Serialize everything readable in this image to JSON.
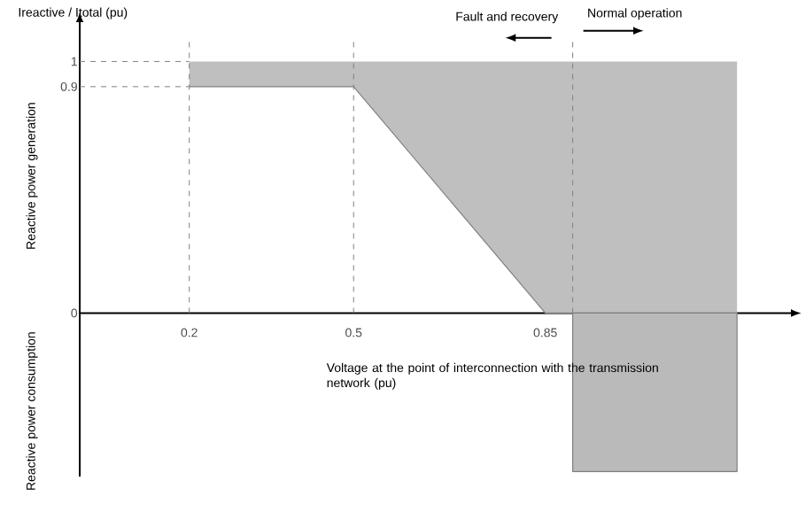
{
  "chart_data": {
    "type": "area",
    "ylabel": "Ireactive / Itotal (pu)",
    "xlabel": "Voltage at the point of interconnection with the transmission network (pu)",
    "xlim": [
      0,
      1.3
    ],
    "ylim": [
      -0.65,
      1.16
    ],
    "xticks": [
      0.2,
      0.5,
      0.85
    ],
    "yticks": [
      0,
      0.9,
      1
    ],
    "series": [
      {
        "type": "line",
        "color": "#808080",
        "x": [
          0.2,
          0.5,
          0.85,
          1.2
        ],
        "values": [
          0.9,
          0.9,
          0,
          0
        ],
        "lower": [
          0.9,
          0.9,
          0,
          0
        ],
        "upper": [
          1,
          1,
          1,
          1
        ]
      },
      {
        "color": "#bababa",
        "x": [
          0.9,
          1.2
        ],
        "values": [
          -0.63,
          -0.63
        ]
      }
    ],
    "ref_lines": [
      {
        "axis": "x",
        "value": 0.2,
        "line_style": "dashed"
      },
      {
        "axis": "x",
        "value": 0.5,
        "line_style": "dashed"
      },
      {
        "axis": "x",
        "value": 0.9,
        "line_style": "dashed"
      },
      {
        "axis": "y",
        "value": 1,
        "line_style": "dashed"
      },
      {
        "axis": "y",
        "value": 0.9,
        "line_style": "dashed"
      }
    ],
    "annotations": [
      "Fault and recovery",
      "Normal operation",
      "Reactive power generation",
      "Reactive power consumption"
    ]
  }
}
